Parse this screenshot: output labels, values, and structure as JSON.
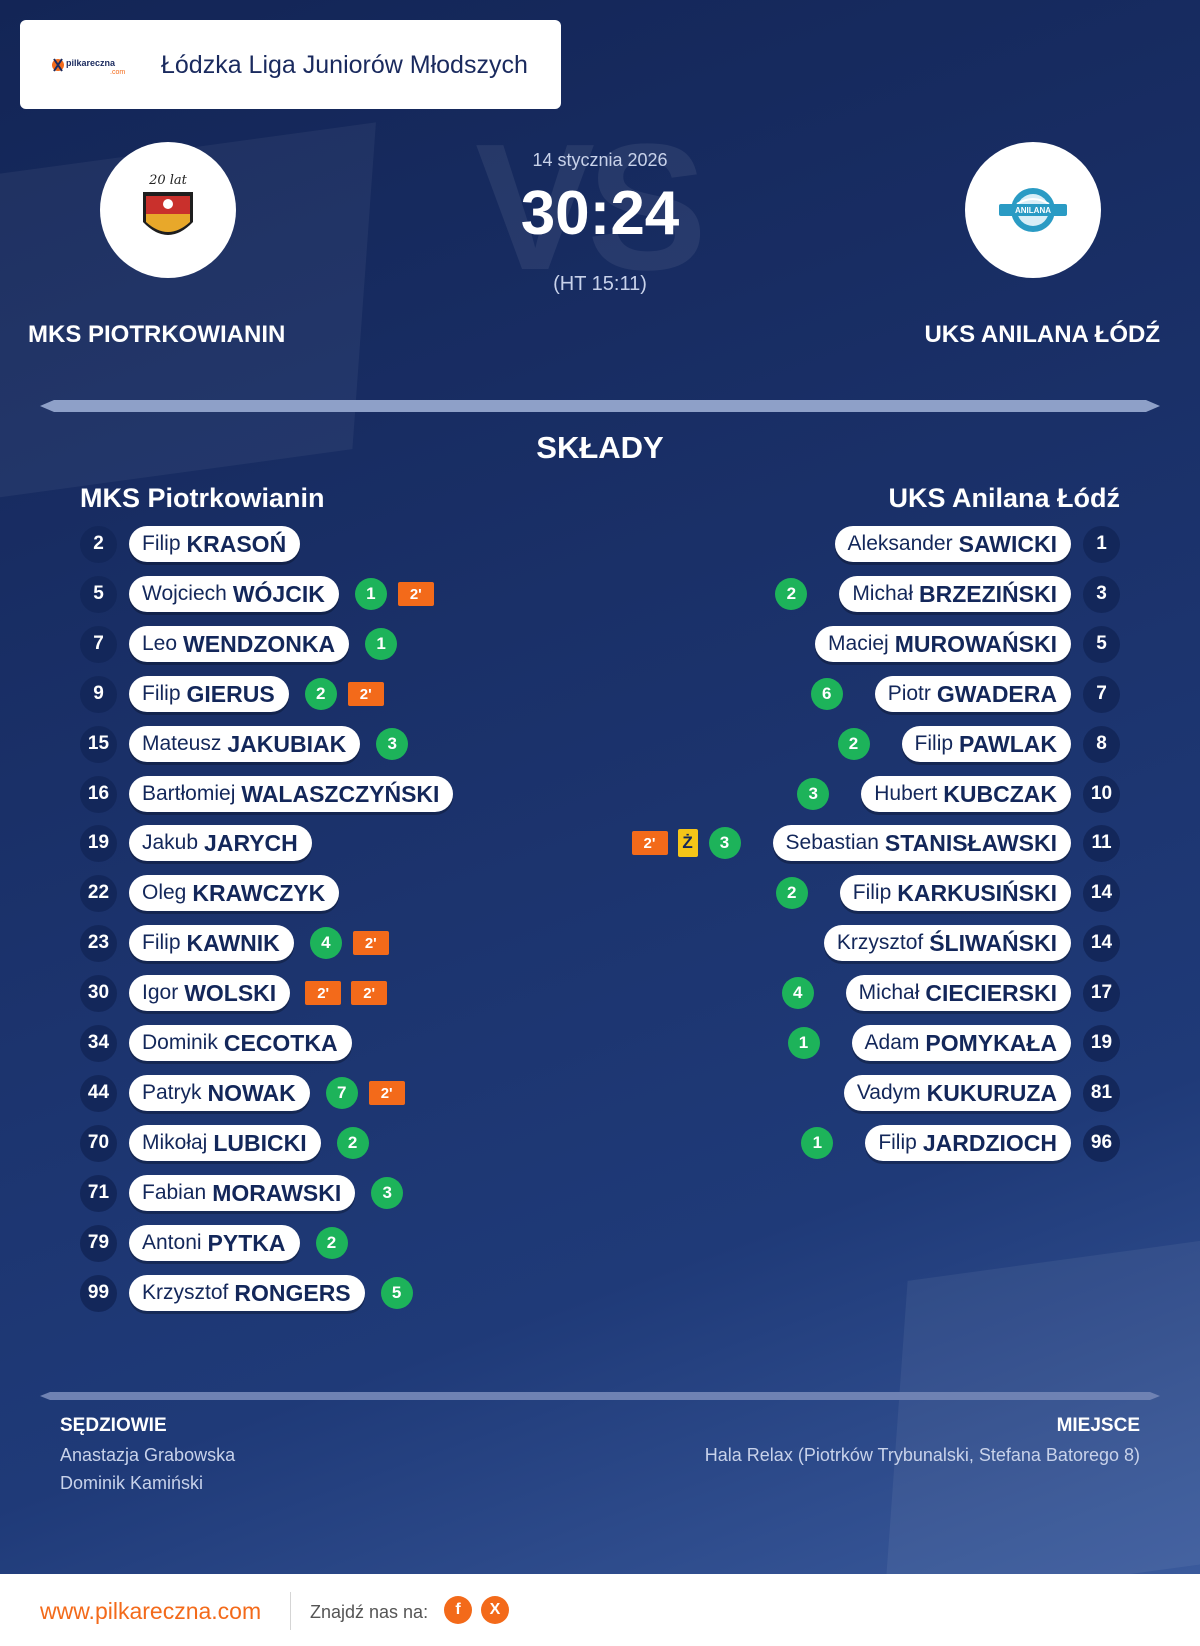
{
  "league": {
    "name": "Łódzka Liga Juniorów Młodszych",
    "logo_text": "pilkareczna",
    "logo_sub": ".com"
  },
  "match": {
    "date": "14 stycznia 2026",
    "score": "30:24",
    "halftime": "(HT 15:11)",
    "vs": "VS"
  },
  "home": {
    "name": "MKS PIOTRKOWIANIN",
    "squad_name": "MKS Piotrkowianin",
    "logo_text": "20 lat",
    "players": [
      {
        "num": "2",
        "first": "Filip",
        "last": "KRASOŃ",
        "goals": null,
        "pens": [],
        "yellow": null
      },
      {
        "num": "5",
        "first": "Wojciech",
        "last": "WÓJCIK",
        "goals": "1",
        "pens": [
          "2'"
        ],
        "yellow": null
      },
      {
        "num": "7",
        "first": "Leo",
        "last": "WENDZONKA",
        "goals": "1",
        "pens": [],
        "yellow": null
      },
      {
        "num": "9",
        "first": "Filip",
        "last": "GIERUS",
        "goals": "2",
        "pens": [
          "2'"
        ],
        "yellow": null
      },
      {
        "num": "15",
        "first": "Mateusz",
        "last": "JAKUBIAK",
        "goals": "3",
        "pens": [],
        "yellow": null
      },
      {
        "num": "16",
        "first": "Bartłomiej",
        "last": "WALASZCZYŃSKI",
        "goals": null,
        "pens": [],
        "yellow": null
      },
      {
        "num": "19",
        "first": "Jakub",
        "last": "JARYCH",
        "goals": null,
        "pens": [],
        "yellow": null
      },
      {
        "num": "22",
        "first": "Oleg",
        "last": "KRAWCZYK",
        "goals": null,
        "pens": [],
        "yellow": null
      },
      {
        "num": "23",
        "first": "Filip",
        "last": "KAWNIK",
        "goals": "4",
        "pens": [
          "2'"
        ],
        "yellow": null
      },
      {
        "num": "30",
        "first": "Igor",
        "last": "WOLSKI",
        "goals": null,
        "pens": [
          "2'",
          "2'"
        ],
        "yellow": null
      },
      {
        "num": "34",
        "first": "Dominik",
        "last": "CECOTKA",
        "goals": null,
        "pens": [],
        "yellow": null
      },
      {
        "num": "44",
        "first": "Patryk",
        "last": "NOWAK",
        "goals": "7",
        "pens": [
          "2'"
        ],
        "yellow": null
      },
      {
        "num": "70",
        "first": "Mikołaj",
        "last": "LUBICKI",
        "goals": "2",
        "pens": [],
        "yellow": null
      },
      {
        "num": "71",
        "first": "Fabian",
        "last": "MORAWSKI",
        "goals": "3",
        "pens": [],
        "yellow": null
      },
      {
        "num": "79",
        "first": "Antoni",
        "last": "PYTKA",
        "goals": "2",
        "pens": [],
        "yellow": null
      },
      {
        "num": "99",
        "first": "Krzysztof",
        "last": "RONGERS",
        "goals": "5",
        "pens": [],
        "yellow": null
      }
    ]
  },
  "away": {
    "name": "UKS ANILANA ŁÓDŹ",
    "squad_name": "UKS Anilana Łódź",
    "logo_text": "ANILANA",
    "players": [
      {
        "num": "1",
        "first": "Aleksander",
        "last": "SAWICKI",
        "goals": null,
        "pens": [],
        "yellow": null
      },
      {
        "num": "3",
        "first": "Michał",
        "last": "BRZEZIŃSKI",
        "goals": "2",
        "pens": [],
        "yellow": null
      },
      {
        "num": "5",
        "first": "Maciej",
        "last": "MUROWAŃSKI",
        "goals": null,
        "pens": [],
        "yellow": null
      },
      {
        "num": "7",
        "first": "Piotr",
        "last": "GWADERA",
        "goals": "6",
        "pens": [],
        "yellow": null
      },
      {
        "num": "8",
        "first": "Filip",
        "last": "PAWLAK",
        "goals": "2",
        "pens": [],
        "yellow": null
      },
      {
        "num": "10",
        "first": "Hubert",
        "last": "KUBCZAK",
        "goals": "3",
        "pens": [],
        "yellow": null
      },
      {
        "num": "11",
        "first": "Sebastian",
        "last": "STANISŁAWSKI",
        "goals": "3",
        "pens": [
          "2'"
        ],
        "yellow": "Ż"
      },
      {
        "num": "14",
        "first": "Filip",
        "last": "KARKUSIŃSKI",
        "goals": "2",
        "pens": [],
        "yellow": null
      },
      {
        "num": "14",
        "first": "Krzysztof",
        "last": "ŚLIWAŃSKI",
        "goals": null,
        "pens": [],
        "yellow": null
      },
      {
        "num": "17",
        "first": "Michał",
        "last": "CIECIERSKI",
        "goals": "4",
        "pens": [],
        "yellow": null
      },
      {
        "num": "19",
        "first": "Adam",
        "last": "POMYKAŁA",
        "goals": "1",
        "pens": [],
        "yellow": null
      },
      {
        "num": "81",
        "first": "Vadym",
        "last": "KUKURUZA",
        "goals": null,
        "pens": [],
        "yellow": null
      },
      {
        "num": "96",
        "first": "Filip",
        "last": "JARDZIOCH",
        "goals": "1",
        "pens": [],
        "yellow": null
      }
    ]
  },
  "sections": {
    "lineups_title": "SKŁADY",
    "referees_title": "SĘDZIOWIE",
    "venue_title": "MIEJSCE"
  },
  "referees": [
    "Anastazja Grabowska",
    "Dominik Kamiński"
  ],
  "venue": "Hala Relax (Piotrków Trybunalski, Stefana Batorego 8)",
  "footer": {
    "url": "www.pilkareczna.com",
    "find_us": "Znajdź nas na:",
    "facebook_label": "f",
    "x_label": "X"
  },
  "colors": {
    "background": "#1a3068",
    "accent": "#f36a1a",
    "goal": "#1db35a",
    "yellow_card": "#f5c518",
    "number_badge": "#13275a"
  }
}
